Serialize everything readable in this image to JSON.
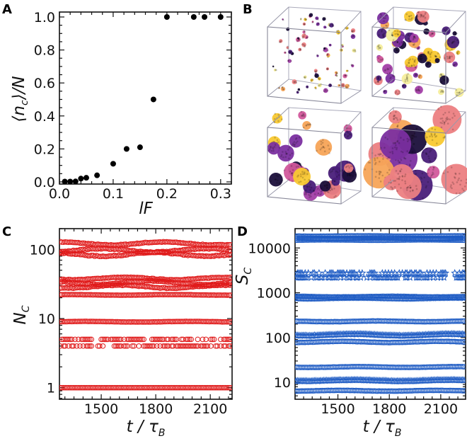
{
  "panels": {
    "A": {
      "letter": "A"
    },
    "B": {
      "letter": "B"
    },
    "C": {
      "letter": "C"
    },
    "D": {
      "letter": "D"
    }
  },
  "colors": {
    "panel_a_markers": "#000000",
    "panel_c_markers": "#e01b1b",
    "panel_d_markers": "#1f5cc4",
    "cluster_palette": [
      "#1b0f3b",
      "#4a1f7a",
      "#7b2fa0",
      "#a33fa8",
      "#d2589c",
      "#ec7f82",
      "#f7a457",
      "#f9c932",
      "#f6ee9c"
    ]
  },
  "chart_data": [
    {
      "panel": "A",
      "type": "scatter",
      "xlabel": "lF",
      "ylabel": {
        "open": "⟨",
        "main": "n",
        "sub": "c",
        "close": "⟩/N"
      },
      "xlim": [
        0,
        0.32
      ],
      "ylim": [
        -0.013,
        1.03
      ],
      "xscale": "linear",
      "yscale": "linear",
      "xticks": [
        "0.0",
        "0.1",
        "0.2",
        "0.3"
      ],
      "yticks": [
        "0.0",
        "0.2",
        "0.4",
        "0.6",
        "0.8",
        "1.0"
      ],
      "grid": false,
      "marker": "filled-circle",
      "x": [
        0.01,
        0.02,
        0.03,
        0.04,
        0.05,
        0.07,
        0.1,
        0.125,
        0.15,
        0.175,
        0.2,
        0.25,
        0.27,
        0.3
      ],
      "y": [
        0.002,
        0.002,
        0.003,
        0.02,
        0.025,
        0.04,
        0.11,
        0.2,
        0.21,
        0.5,
        1.0,
        1.0,
        1.0,
        1.0
      ]
    },
    {
      "panel": "B",
      "type": "image",
      "description_free": true,
      "snapshots": 4
    },
    {
      "panel": "C",
      "type": "scatter",
      "xlabel": {
        "main": "t / τ",
        "sub": "B"
      },
      "ylabel": {
        "main": "N",
        "sub": "C"
      },
      "xlim": [
        1270,
        2220
      ],
      "ylim": [
        0.68,
        200
      ],
      "xscale": "linear",
      "yscale": "log",
      "xticks": [
        "1500",
        "1800",
        "2100"
      ],
      "yticks": [
        "1",
        "10",
        "100"
      ],
      "grid": false,
      "marker": "open-circle",
      "t_sampling": {
        "start": 1275,
        "end": 2215,
        "step": 9
      },
      "series": [
        {
          "level": 122,
          "jitter": 0.05
        },
        {
          "level": 97,
          "jitter": 0.06
        },
        {
          "level": 85,
          "jitter": 0.06
        },
        {
          "level": 38,
          "jitter": 0.04
        },
        {
          "level": 33,
          "jitter": 0.06
        },
        {
          "level": 29,
          "jitter": 0.05
        },
        {
          "level": 22,
          "jitter": 0.01
        },
        {
          "level": 9,
          "jitter": 0.01
        },
        {
          "level": 5,
          "jitter": 0,
          "density": 0.7
        },
        {
          "level": 4,
          "jitter": 0,
          "density": 0.65
        },
        {
          "level": 1,
          "jitter": 0
        }
      ]
    },
    {
      "panel": "D",
      "type": "scatter",
      "xlabel": {
        "main": "t / τ",
        "sub": "B"
      },
      "ylabel": {
        "main": "S",
        "sub": "C"
      },
      "xlim": [
        1250,
        2245
      ],
      "ylim": [
        4.2,
        27000
      ],
      "xscale": "linear",
      "yscale": "log",
      "xticks": [
        "1500",
        "1800",
        "2100"
      ],
      "yticks": [
        "10",
        "100",
        "1000",
        "10000"
      ],
      "grid": false,
      "t_sampling": {
        "start": 1255,
        "end": 2240,
        "step": 9
      },
      "series": [
        {
          "level": 18500,
          "jitter": 0.01,
          "marker": "open-circle"
        },
        {
          "level": 16500,
          "jitter": 0.01,
          "marker": "open-circle"
        },
        {
          "level": 15000,
          "jitter": 0.01,
          "marker": "open-circle"
        },
        {
          "level": 2750,
          "jitter": 0,
          "marker": "star",
          "density": 0.6
        },
        {
          "level": 2200,
          "jitter": 0,
          "marker": "star",
          "density": 0.6
        },
        {
          "level": 820,
          "jitter": 0.02,
          "marker": "open-circle"
        },
        {
          "level": 760,
          "jitter": 0.02,
          "marker": "star"
        },
        {
          "level": 230,
          "jitter": 0.02,
          "marker": "open-circle"
        },
        {
          "level": 115,
          "jitter": 0.04,
          "marker": "star"
        },
        {
          "level": 80,
          "jitter": 0.03,
          "marker": "open-circle"
        },
        {
          "level": 22,
          "jitter": 0.02,
          "marker": "open-circle"
        },
        {
          "level": 11,
          "jitter": 0.03,
          "marker": "star"
        },
        {
          "level": 6.5,
          "jitter": 0.02,
          "marker": "open-circle"
        }
      ]
    }
  ]
}
